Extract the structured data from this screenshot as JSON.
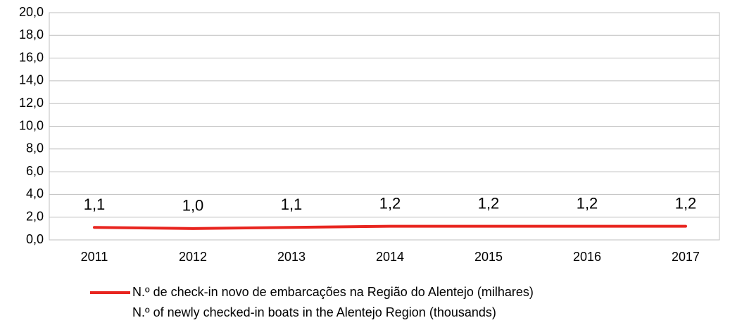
{
  "chart_data": {
    "type": "line",
    "categories": [
      "2011",
      "2012",
      "2013",
      "2014",
      "2015",
      "2016",
      "2017"
    ],
    "series": [
      {
        "name": [
          "N.º de check-in novo de embarcações na Região do Alentejo (milhares)",
          "N.º of newly checked-in boats in the Alentejo Region (thousands)"
        ],
        "color": "#e8251f",
        "values": [
          1.1,
          1.0,
          1.1,
          1.2,
          1.2,
          1.2,
          1.2
        ],
        "value_labels": [
          "1,1",
          "1,0",
          "1,1",
          "1,2",
          "1,2",
          "1,2",
          "1,2"
        ]
      }
    ],
    "ylim": [
      0,
      20
    ],
    "yticks": [
      {
        "value": 0,
        "label": "0,0"
      },
      {
        "value": 2,
        "label": "2,0"
      },
      {
        "value": 4,
        "label": "4,0"
      },
      {
        "value": 6,
        "label": "6,0"
      },
      {
        "value": 8,
        "label": "8,0"
      },
      {
        "value": 10,
        "label": "10,0"
      },
      {
        "value": 12,
        "label": "12,0"
      },
      {
        "value": 14,
        "label": "14,0"
      },
      {
        "value": 16,
        "label": "16,0"
      },
      {
        "value": 18,
        "label": "18,0"
      },
      {
        "value": 20,
        "label": "20,0"
      }
    ],
    "grid": true,
    "legend": "bottom"
  }
}
